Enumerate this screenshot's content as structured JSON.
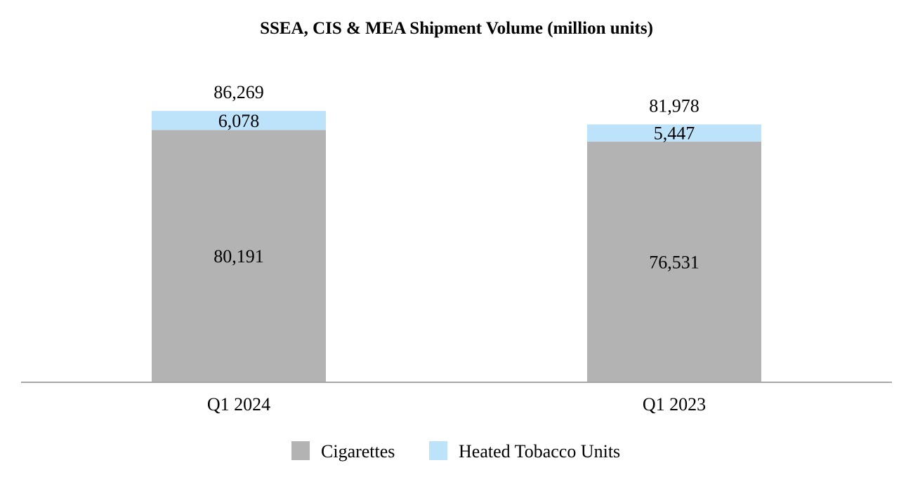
{
  "chart_data": {
    "type": "bar",
    "stacked": true,
    "title": "SSEA, CIS & MEA Shipment Volume (million units)",
    "xlabel": "",
    "ylabel": "",
    "categories": [
      "Q1 2024",
      "Q1 2023"
    ],
    "series": [
      {
        "name": "Cigarettes",
        "color": "#b3b3b3",
        "values": [
          80191,
          76531
        ],
        "labels": [
          "80,191",
          "76,531"
        ]
      },
      {
        "name": "Heated Tobacco Units",
        "color": "#bde3fb",
        "values": [
          6078,
          5447
        ],
        "labels": [
          "6,078",
          "5,447"
        ]
      }
    ],
    "totals": [
      86269,
      81978
    ],
    "total_labels": [
      "86,269",
      "81,978"
    ],
    "ylim": [
      0,
      97000
    ],
    "grid": false,
    "legend_position": "bottom-center",
    "axis_color": "#a6a6a6"
  }
}
